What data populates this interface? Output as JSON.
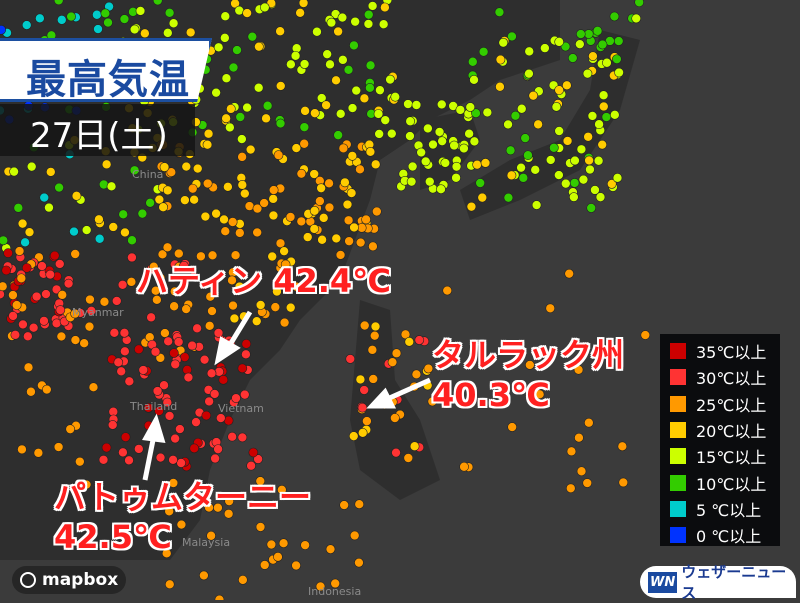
{
  "title": "最高気温",
  "date": "27日(土)",
  "callouts": {
    "hatinh": "ハティン 42.4℃",
    "tarlac_name": "タルラック州",
    "tarlac_value": "40.3℃",
    "pathum_name": "パトゥムターニー",
    "pathum_value": "42.5℃"
  },
  "map_labels": [
    "China",
    "Myanmar",
    "Thailand",
    "Vietnam",
    "Malaysia",
    "Indonesia"
  ],
  "legend": [
    {
      "label": "35℃以上",
      "color": "#cc0000"
    },
    {
      "label": "30℃以上",
      "color": "#ff3333"
    },
    {
      "label": "25℃以上",
      "color": "#ff9900"
    },
    {
      "label": "20℃以上",
      "color": "#ffcc00"
    },
    {
      "label": "15℃以上",
      "color": "#ccff00"
    },
    {
      "label": "10℃以上",
      "color": "#33cc00"
    },
    {
      "label": "5 ℃以上",
      "color": "#00cccc"
    },
    {
      "label": "0 ℃以上",
      "color": "#0033ff"
    }
  ],
  "attribution": "mapbox",
  "brand": {
    "logo": "WN",
    "name": "ウェザーニュース"
  }
}
